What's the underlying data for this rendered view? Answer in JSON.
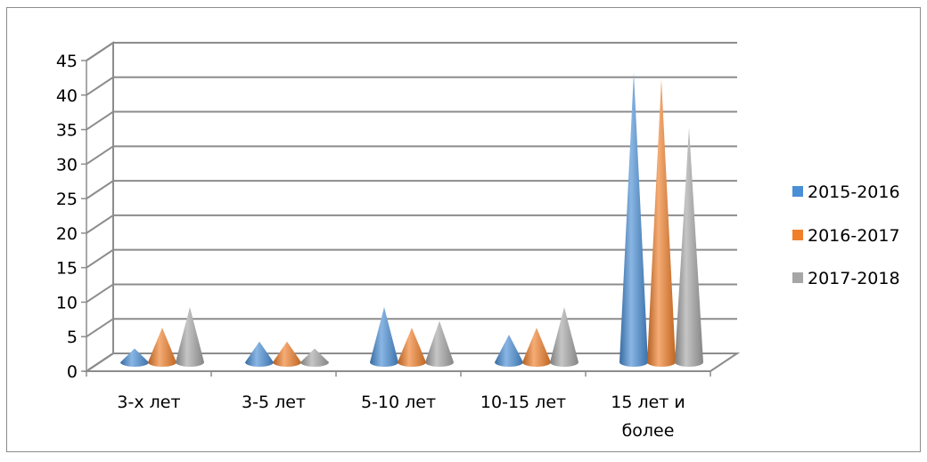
{
  "chart_data": {
    "type": "bar",
    "subtype": "3d-cone",
    "title": "",
    "xlabel": "",
    "ylabel": "",
    "categories": [
      "3-х лет",
      "3-5 лет",
      "5-10 лет",
      "10-15 лет",
      "15 лет и более"
    ],
    "series": [
      {
        "name": "2015-2016",
        "color": "#4a8fd6",
        "values": [
          2,
          3,
          8,
          4,
          42
        ]
      },
      {
        "name": "2016-2017",
        "color": "#f07f2a",
        "values": [
          5,
          3,
          5,
          5,
          41
        ]
      },
      {
        "name": "2017-2018",
        "color": "#a6a6a6",
        "values": [
          8,
          2,
          6,
          8,
          34
        ]
      }
    ],
    "ylim": [
      0,
      45
    ],
    "yticks": [
      "0",
      "5",
      "10",
      "15",
      "20",
      "25",
      "30",
      "35",
      "40",
      "45"
    ],
    "grid": true,
    "legend": "right"
  }
}
